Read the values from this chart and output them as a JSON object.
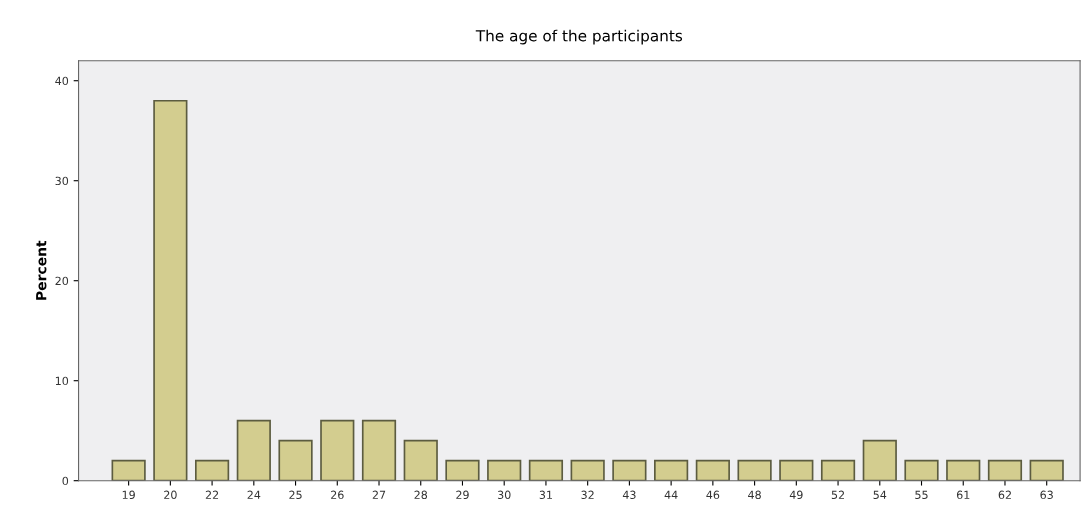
{
  "chart_data": {
    "type": "bar",
    "title": "The age of the participants",
    "ylabel": "Percent",
    "categories": [
      "19",
      "20",
      "22",
      "24",
      "25",
      "26",
      "27",
      "28",
      "29",
      "30",
      "31",
      "32",
      "43",
      "44",
      "46",
      "48",
      "49",
      "52",
      "54",
      "55",
      "61",
      "62",
      "63"
    ],
    "values": [
      2,
      38,
      2,
      6,
      4,
      6,
      6,
      4,
      2,
      2,
      2,
      2,
      2,
      2,
      2,
      2,
      2,
      2,
      4,
      2,
      2,
      2,
      2
    ],
    "color": "#d3cd8f",
    "ylim": [
      0,
      42
    ],
    "yticks": [
      0,
      10,
      20,
      30,
      40
    ],
    "grid": false,
    "legend": false
  }
}
